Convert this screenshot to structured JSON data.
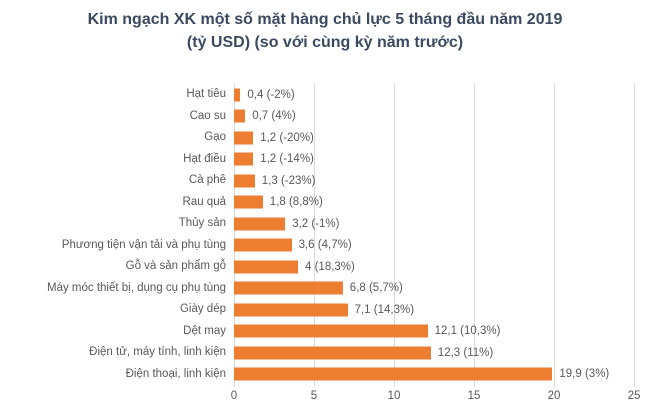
{
  "colors": {
    "bar": "#ED7D31",
    "gridline": "#D9D9D9",
    "label": "#595959",
    "title": "#3B4A61",
    "background": "#FFFFFF"
  },
  "chart_data": {
    "type": "bar",
    "orientation": "horizontal",
    "title": "Kim ngạch XK một số mặt hàng chủ lực 5 tháng đầu năm 2019",
    "subtitle": "(tỷ USD) (so với cùng kỳ năm trước)",
    "categories": [
      "Hạt tiêu",
      "Cao su",
      "Gạo",
      "Hạt điều",
      "Cà phê",
      "Rau quả",
      "Thủy sản",
      "Phương tiện vận tải và phụ tùng",
      "Gỗ và sản phẩm gỗ",
      "Máy móc thiết bị, dụng cụ phụ tùng",
      "Giày dép",
      "Dệt may",
      "Điện tử, máy tính, linh kiện",
      "Điện thoại, linh kiện"
    ],
    "values": [
      0.4,
      0.7,
      1.2,
      1.2,
      1.3,
      1.8,
      3.2,
      3.6,
      4,
      6.8,
      7.1,
      12.1,
      12.3,
      19.9
    ],
    "data_labels": [
      "0,4 (-2%)",
      "0,7 (4%)",
      "1,2 (-20%)",
      "1,2 (-14%)",
      "1,3 (-23%)",
      "1,8 (8,8%)",
      "3,2 (-1%)",
      "3,6 (4,7%)",
      "4 (18,3%)",
      "6,8 (5,7%)",
      "7,1 (14,3%)",
      "12,1 (10,3%)",
      "12,3 (11%)",
      "19,9 (3%)"
    ],
    "xlabel": "",
    "ylabel": "",
    "xlim": [
      0,
      25
    ],
    "x_ticks": [
      0,
      5,
      10,
      15,
      20,
      25
    ],
    "grid": true,
    "legend": false
  }
}
